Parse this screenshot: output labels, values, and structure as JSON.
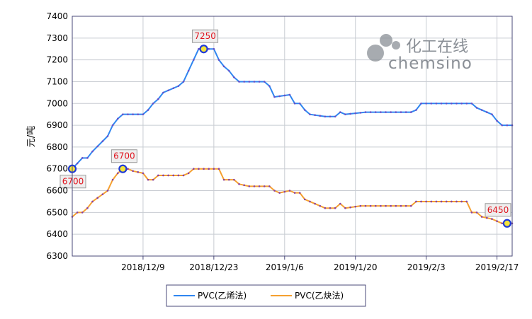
{
  "chart_data": {
    "type": "line",
    "title": "",
    "xlabel": "",
    "ylabel": "元/吨",
    "ylim": [
      6300,
      7400
    ],
    "yticks": [
      6300,
      6400,
      6500,
      6600,
      6700,
      6800,
      6900,
      7000,
      7100,
      7200,
      7300,
      7400
    ],
    "xlim": [
      "2018-11-25",
      "2019-02-20"
    ],
    "xticks": [
      {
        "date": "2018-12-09",
        "label": "2018/12/9"
      },
      {
        "date": "2018-12-23",
        "label": "2018/12/23"
      },
      {
        "date": "2019-01-06",
        "label": "2019/1/6"
      },
      {
        "date": "2019-01-20",
        "label": "2019/1/20"
      },
      {
        "date": "2019-02-03",
        "label": "2019/2/3"
      },
      {
        "date": "2019-02-17",
        "label": "2019/2/17"
      }
    ],
    "grid": true,
    "legend_position": "bottom",
    "series": [
      {
        "name": "PVC(乙烯法)",
        "color": "#2f86f0",
        "points": [
          [
            "2018-11-25",
            6700
          ],
          [
            "2018-11-27",
            6750
          ],
          [
            "2018-11-28",
            6750
          ],
          [
            "2018-11-29",
            6780
          ],
          [
            "2018-12-02",
            6850
          ],
          [
            "2018-12-03",
            6900
          ],
          [
            "2018-12-04",
            6930
          ],
          [
            "2018-12-05",
            6950
          ],
          [
            "2018-12-09",
            6950
          ],
          [
            "2018-12-10",
            6970
          ],
          [
            "2018-12-11",
            7000
          ],
          [
            "2018-12-12",
            7020
          ],
          [
            "2018-12-13",
            7050
          ],
          [
            "2018-12-16",
            7080
          ],
          [
            "2018-12-17",
            7100
          ],
          [
            "2018-12-20",
            7250
          ],
          [
            "2018-12-23",
            7250
          ],
          [
            "2018-12-24",
            7200
          ],
          [
            "2018-12-25",
            7170
          ],
          [
            "2018-12-26",
            7150
          ],
          [
            "2018-12-27",
            7120
          ],
          [
            "2018-12-28",
            7100
          ],
          [
            "2019-01-02",
            7100
          ],
          [
            "2019-01-03",
            7080
          ],
          [
            "2019-01-04",
            7030
          ],
          [
            "2019-01-07",
            7040
          ],
          [
            "2019-01-08",
            7000
          ],
          [
            "2019-01-09",
            7000
          ],
          [
            "2019-01-10",
            6970
          ],
          [
            "2019-01-11",
            6950
          ],
          [
            "2019-01-14",
            6940
          ],
          [
            "2019-01-16",
            6940
          ],
          [
            "2019-01-17",
            6960
          ],
          [
            "2019-01-18",
            6950
          ],
          [
            "2019-01-22",
            6960
          ],
          [
            "2019-01-31",
            6960
          ],
          [
            "2019-02-01",
            6970
          ],
          [
            "2019-02-02",
            7000
          ],
          [
            "2019-02-12",
            7000
          ],
          [
            "2019-02-13",
            6980
          ],
          [
            "2019-02-14",
            6970
          ],
          [
            "2019-02-16",
            6950
          ],
          [
            "2019-02-17",
            6920
          ],
          [
            "2019-02-18",
            6900
          ],
          [
            "2019-02-20",
            6900
          ]
        ]
      },
      {
        "name": "PVC(乙炔法)",
        "color": "#f5a030",
        "points": [
          [
            "2018-11-25",
            6480
          ],
          [
            "2018-11-26",
            6500
          ],
          [
            "2018-11-27",
            6500
          ],
          [
            "2018-11-28",
            6520
          ],
          [
            "2018-11-29",
            6550
          ],
          [
            "2018-12-02",
            6600
          ],
          [
            "2018-12-03",
            6650
          ],
          [
            "2018-12-04",
            6680
          ],
          [
            "2018-12-05",
            6700
          ],
          [
            "2018-12-06",
            6700
          ],
          [
            "2018-12-07",
            6690
          ],
          [
            "2018-12-09",
            6680
          ],
          [
            "2018-12-10",
            6650
          ],
          [
            "2018-12-11",
            6650
          ],
          [
            "2018-12-12",
            6670
          ],
          [
            "2018-12-17",
            6670
          ],
          [
            "2018-12-18",
            6680
          ],
          [
            "2018-12-19",
            6700
          ],
          [
            "2018-12-24",
            6700
          ],
          [
            "2018-12-25",
            6650
          ],
          [
            "2018-12-27",
            6650
          ],
          [
            "2018-12-28",
            6630
          ],
          [
            "2018-12-30",
            6620
          ],
          [
            "2019-01-03",
            6620
          ],
          [
            "2019-01-04",
            6600
          ],
          [
            "2019-01-05",
            6590
          ],
          [
            "2019-01-07",
            6600
          ],
          [
            "2019-01-08",
            6590
          ],
          [
            "2019-01-09",
            6590
          ],
          [
            "2019-01-10",
            6560
          ],
          [
            "2019-01-11",
            6550
          ],
          [
            "2019-01-14",
            6520
          ],
          [
            "2019-01-16",
            6520
          ],
          [
            "2019-01-17",
            6540
          ],
          [
            "2019-01-18",
            6520
          ],
          [
            "2019-01-21",
            6530
          ],
          [
            "2019-01-31",
            6530
          ],
          [
            "2019-02-01",
            6550
          ],
          [
            "2019-02-11",
            6550
          ],
          [
            "2019-02-12",
            6500
          ],
          [
            "2019-02-13",
            6500
          ],
          [
            "2019-02-14",
            6480
          ],
          [
            "2019-02-16",
            6470
          ],
          [
            "2019-02-17",
            6460
          ],
          [
            "2019-02-18",
            6450
          ],
          [
            "2019-02-20",
            6450
          ]
        ]
      }
    ],
    "annotations": [
      {
        "series": 0,
        "date": "2018-11-25",
        "value": 6700,
        "label": "6700"
      },
      {
        "series": 1,
        "date": "2018-12-05",
        "value": 6700,
        "label": "6700"
      },
      {
        "series": 0,
        "date": "2018-12-21",
        "value": 7250,
        "label": "7250"
      },
      {
        "series": 1,
        "date": "2019-02-19",
        "value": 6450,
        "label": "6450"
      }
    ]
  },
  "watermark": {
    "text_cn": "化工在线",
    "text_en": "chemsino"
  }
}
